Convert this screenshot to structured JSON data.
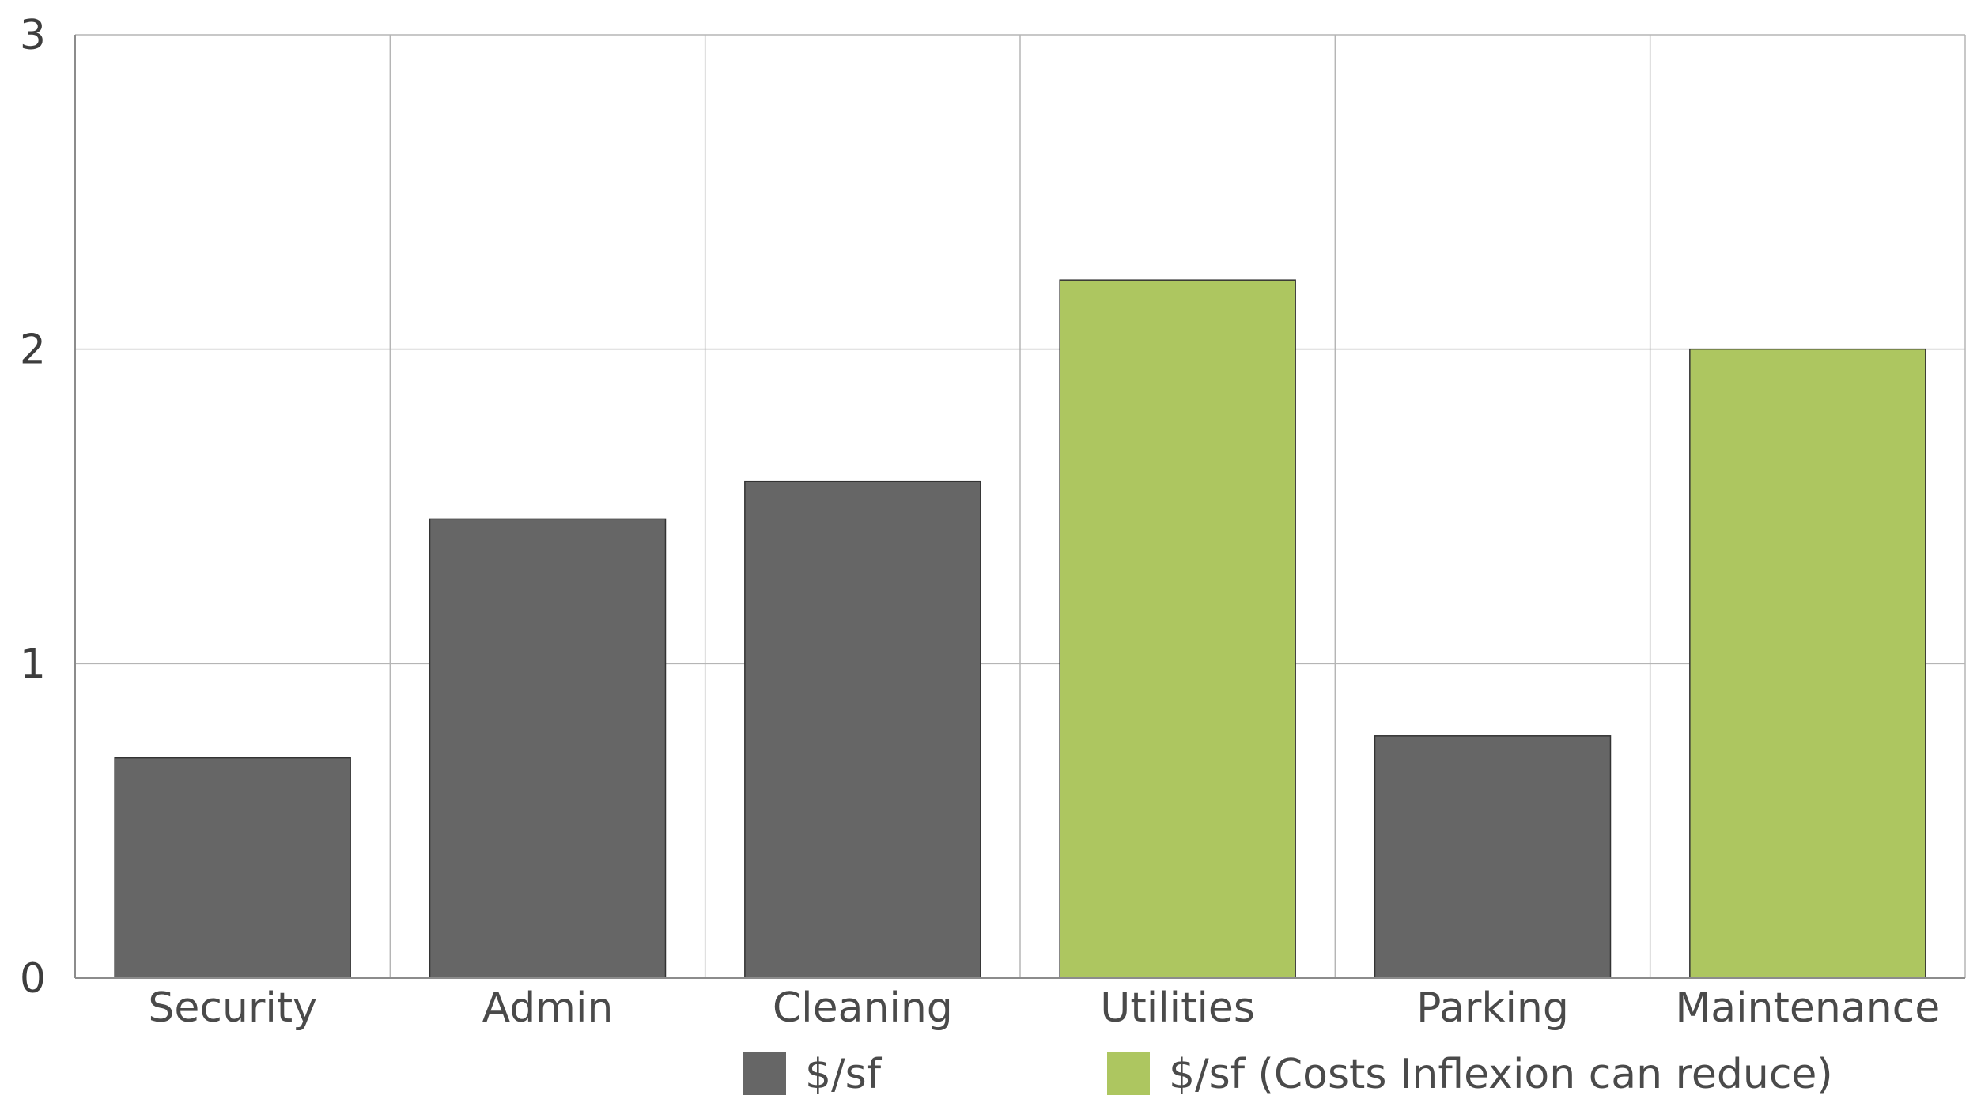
{
  "chart_data": {
    "type": "bar",
    "categories": [
      "Security",
      "Admin",
      "Cleaning",
      "Utilities",
      "Parking",
      "Maintenance"
    ],
    "series": [
      {
        "name": "$/sf",
        "color": "#666666",
        "values": [
          0.7,
          1.46,
          1.58,
          null,
          0.77,
          null
        ]
      },
      {
        "name": "$/sf (Costs Inflexion can reduce)",
        "color": "#adc660",
        "values": [
          null,
          null,
          null,
          2.22,
          null,
          2.0
        ]
      }
    ],
    "ylim": [
      0,
      3
    ],
    "yticks": [
      0,
      1,
      2,
      3
    ],
    "grid": true,
    "legend_position": "bottom"
  }
}
